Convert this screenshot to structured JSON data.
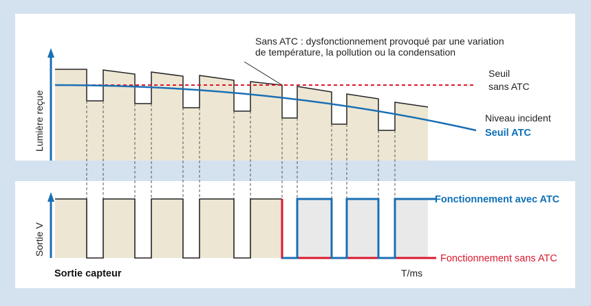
{
  "annotation": {
    "line1": "Sans ATC : dysfonctionnement provoqué par une variation",
    "line2": "de température, la pollution ou la condensation"
  },
  "top_panel": {
    "ylabel": "Lumière reçue",
    "threshold_label_line1": "Seuil",
    "threshold_label_line2": "sans ATC",
    "incident_label": "Niveau incident",
    "atc_label": "Seuil ATC"
  },
  "bottom_panel": {
    "ylabel": "Sortie V",
    "with_atc_label": "Fonctionnement avec ATC",
    "without_atc_label": "Fonctionnement sans ATC",
    "sensor_label": "Sortie capteur",
    "time_label": "T/ms"
  },
  "colors": {
    "background": "#d4e1ef",
    "panel": "#ffffff",
    "fill": "#ece6d3",
    "fill_gray": "#e9e9e9",
    "blue": "#1a6fb4",
    "red": "#d9182d",
    "dark": "#222222"
  }
}
